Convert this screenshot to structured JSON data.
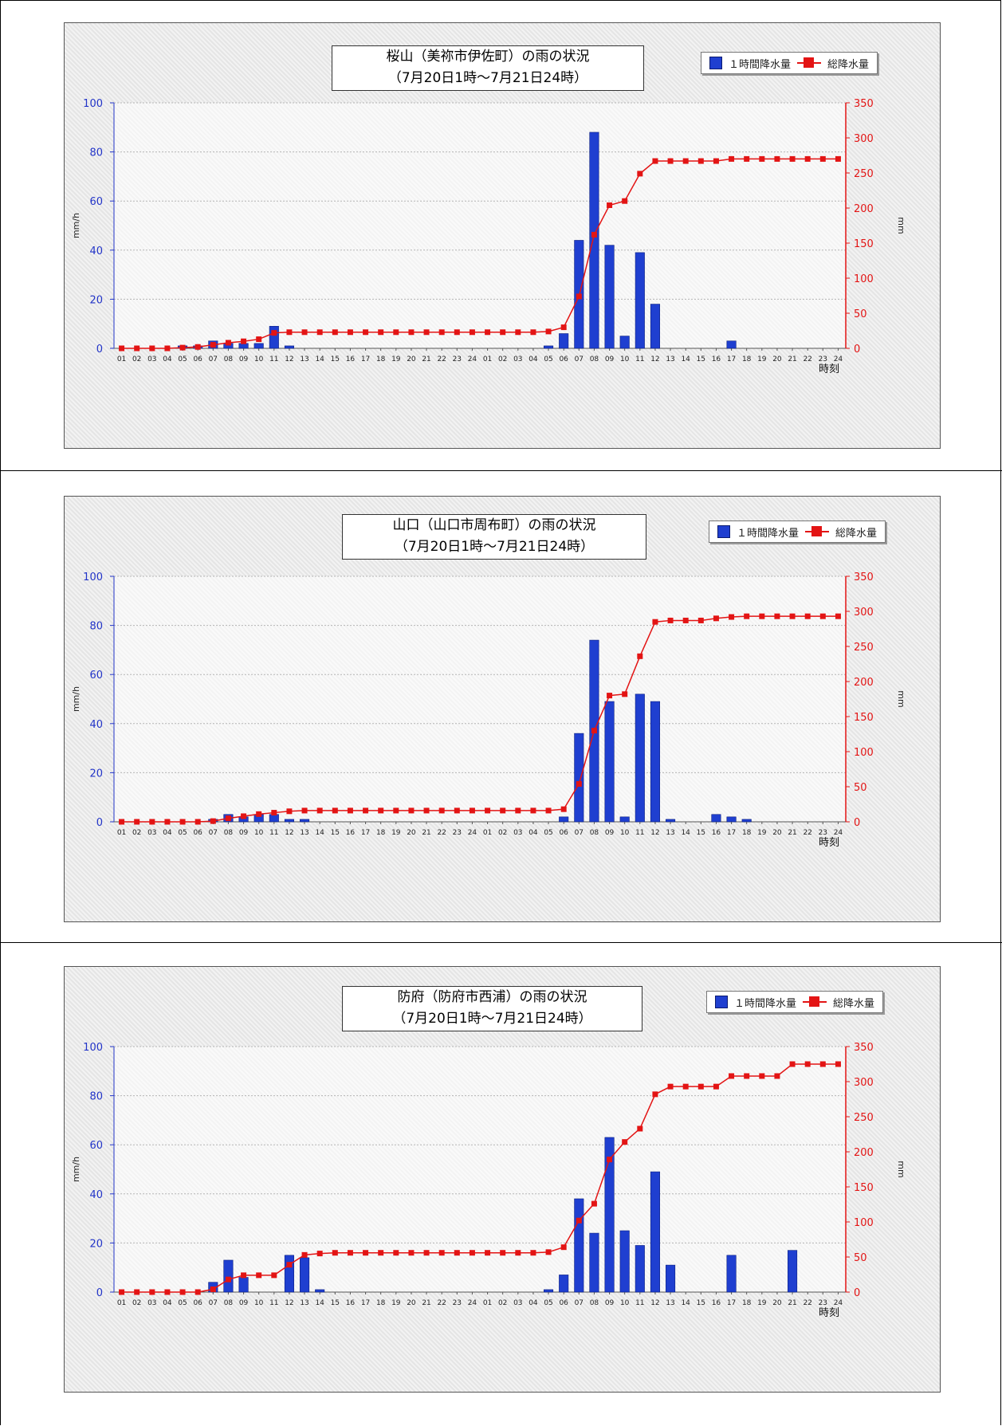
{
  "legend": {
    "bar_label": "１時間降水量",
    "line_label": "総降水量"
  },
  "colors": {
    "bar": "#1f3fd0",
    "line": "#e31414",
    "left_axis": "#2234c8",
    "right_axis": "#e31414"
  },
  "chart_data": [
    {
      "type": "bar+line",
      "title": "桜山（美祢市伊佐町）の雨の状況",
      "subtitle": "（7月20日1時～7月21日24時）",
      "xlabel": "時刻",
      "ylabel_left": "mm/h",
      "ylabel_right": "mm",
      "ylim_left": [
        0,
        100
      ],
      "ylim_right": [
        0,
        350
      ],
      "yticks_left": [
        "0",
        "20",
        "40",
        "60",
        "80",
        "100"
      ],
      "yticks_right": [
        "0",
        "50",
        "100",
        "150",
        "200",
        "250",
        "300",
        "350"
      ],
      "categories": [
        "01",
        "02",
        "03",
        "04",
        "05",
        "06",
        "07",
        "08",
        "09",
        "10",
        "11",
        "12",
        "13",
        "14",
        "15",
        "16",
        "17",
        "18",
        "19",
        "20",
        "21",
        "22",
        "23",
        "24",
        "01",
        "02",
        "03",
        "04",
        "05",
        "06",
        "07",
        "08",
        "09",
        "10",
        "11",
        "12",
        "13",
        "14",
        "15",
        "16",
        "17",
        "18",
        "19",
        "20",
        "21",
        "22",
        "23",
        "24"
      ],
      "series": [
        {
          "name": "１時間降水量",
          "kind": "bar",
          "axis": "left",
          "values": [
            0,
            0,
            0,
            0,
            1,
            1,
            3,
            2,
            2,
            2,
            9,
            1,
            0,
            0,
            0,
            0,
            0,
            0,
            0,
            0,
            0,
            0,
            0,
            0,
            0,
            0,
            0,
            0,
            1,
            6,
            44,
            88,
            42,
            5,
            39,
            18,
            0,
            0,
            0,
            0,
            3,
            0,
            0,
            0,
            0,
            0,
            0,
            0
          ]
        },
        {
          "name": "総降水量",
          "kind": "line",
          "axis": "right",
          "values": [
            0,
            0,
            0,
            0,
            1,
            2,
            5,
            8,
            10,
            13,
            22,
            23,
            23,
            23,
            23,
            23,
            23,
            23,
            23,
            23,
            23,
            23,
            23,
            23,
            23,
            23,
            23,
            23,
            24,
            30,
            74,
            162,
            204,
            210,
            249,
            267,
            267,
            267,
            267,
            267,
            270,
            270,
            270,
            270,
            270,
            270,
            270,
            270
          ]
        }
      ]
    },
    {
      "type": "bar+line",
      "title": "山口（山口市周布町）の雨の状況",
      "subtitle": "（7月20日1時～7月21日24時）",
      "xlabel": "時刻",
      "ylabel_left": "mm/h",
      "ylabel_right": "mm",
      "ylim_left": [
        0,
        100
      ],
      "ylim_right": [
        0,
        350
      ],
      "yticks_left": [
        "0",
        "20",
        "40",
        "60",
        "80",
        "100"
      ],
      "yticks_right": [
        "0",
        "50",
        "100",
        "150",
        "200",
        "250",
        "300",
        "350"
      ],
      "categories": [
        "01",
        "02",
        "03",
        "04",
        "05",
        "06",
        "07",
        "08",
        "09",
        "10",
        "11",
        "12",
        "13",
        "14",
        "15",
        "16",
        "17",
        "18",
        "19",
        "20",
        "21",
        "22",
        "23",
        "24",
        "01",
        "02",
        "03",
        "04",
        "05",
        "06",
        "07",
        "08",
        "09",
        "10",
        "11",
        "12",
        "13",
        "14",
        "15",
        "16",
        "17",
        "18",
        "19",
        "20",
        "21",
        "22",
        "23",
        "24"
      ],
      "series": [
        {
          "name": "１時間降水量",
          "kind": "bar",
          "axis": "left",
          "values": [
            0,
            0,
            0,
            0,
            0,
            0,
            1,
            3,
            2,
            3,
            3,
            1,
            1,
            0,
            0,
            0,
            0,
            0,
            0,
            0,
            0,
            0,
            0,
            0,
            0,
            0,
            0,
            0,
            0,
            2,
            36,
            74,
            49,
            2,
            52,
            49,
            1,
            0,
            0,
            3,
            2,
            1,
            0,
            0,
            0,
            0,
            0,
            0
          ]
        },
        {
          "name": "総降水量",
          "kind": "line",
          "axis": "right",
          "values": [
            0,
            0,
            0,
            0,
            0,
            0,
            1,
            5,
            8,
            11,
            13,
            15,
            16,
            16,
            16,
            16,
            16,
            16,
            16,
            16,
            16,
            16,
            16,
            16,
            16,
            16,
            16,
            16,
            16,
            18,
            54,
            130,
            180,
            182,
            236,
            285,
            287,
            287,
            287,
            290,
            292,
            293,
            293,
            293,
            293,
            293,
            293,
            293
          ]
        }
      ]
    },
    {
      "type": "bar+line",
      "title": "防府（防府市西浦）の雨の状況",
      "subtitle": "（7月20日1時～7月21日24時）",
      "xlabel": "時刻",
      "ylabel_left": "mm/h",
      "ylabel_right": "mm",
      "ylim_left": [
        0,
        100
      ],
      "ylim_right": [
        0,
        350
      ],
      "yticks_left": [
        "0",
        "20",
        "40",
        "60",
        "80",
        "100"
      ],
      "yticks_right": [
        "0",
        "50",
        "100",
        "150",
        "200",
        "250",
        "300",
        "350"
      ],
      "categories": [
        "01",
        "02",
        "03",
        "04",
        "05",
        "06",
        "07",
        "08",
        "09",
        "10",
        "11",
        "12",
        "13",
        "14",
        "15",
        "16",
        "17",
        "18",
        "19",
        "20",
        "21",
        "22",
        "23",
        "24",
        "01",
        "02",
        "03",
        "04",
        "05",
        "06",
        "07",
        "08",
        "09",
        "10",
        "11",
        "12",
        "13",
        "14",
        "15",
        "16",
        "17",
        "18",
        "19",
        "20",
        "21",
        "22",
        "23",
        "24"
      ],
      "series": [
        {
          "name": "１時間降水量",
          "kind": "bar",
          "axis": "left",
          "values": [
            0,
            0,
            0,
            0,
            0,
            0,
            4,
            13,
            6,
            0,
            0,
            15,
            14,
            1,
            0,
            0,
            0,
            0,
            0,
            0,
            0,
            0,
            0,
            0,
            0,
            0,
            0,
            0,
            1,
            7,
            38,
            24,
            63,
            25,
            19,
            49,
            11,
            0,
            0,
            0,
            15,
            0,
            0,
            0,
            17,
            0,
            0,
            0
          ]
        },
        {
          "name": "総降水量",
          "kind": "line",
          "axis": "right",
          "values": [
            0,
            0,
            0,
            0,
            0,
            0,
            4,
            18,
            24,
            24,
            24,
            39,
            53,
            55,
            56,
            56,
            56,
            56,
            56,
            56,
            56,
            56,
            56,
            56,
            56,
            56,
            56,
            56,
            57,
            64,
            102,
            126,
            189,
            214,
            233,
            282,
            293,
            293,
            293,
            293,
            308,
            308,
            308,
            308,
            325,
            325,
            325,
            325
          ]
        }
      ]
    }
  ]
}
